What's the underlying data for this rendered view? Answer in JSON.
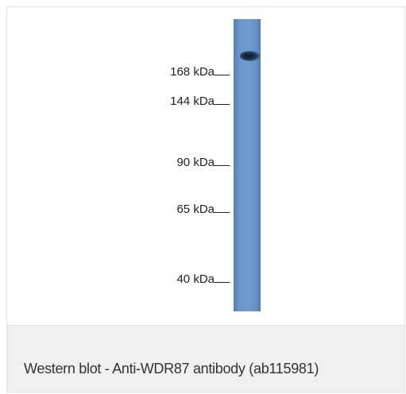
{
  "blot": {
    "markers": [
      {
        "label": "168 kDa"
      },
      {
        "label": "144 kDa"
      },
      {
        "label": "90 kDa"
      },
      {
        "label": "65 kDa"
      },
      {
        "label": "40 kDa"
      }
    ],
    "lane_color": "#6f9bcd",
    "band_color": "#1d3450"
  },
  "caption": "Western blot - Anti-WDR87 antibody (ab115981)",
  "colors": {
    "caption_background": "#f0f0f0",
    "border": "#e2e2e2"
  }
}
